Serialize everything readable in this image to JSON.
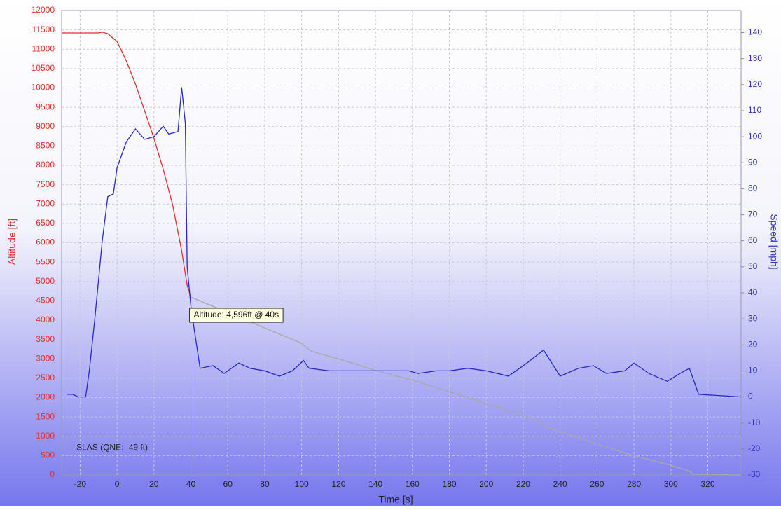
{
  "chart_data": {
    "type": "line",
    "xlabel": "Time [s]",
    "ylabel": "Altitude [ft]",
    "y2label": "Speed [mph]",
    "xlim": [
      -30,
      338
    ],
    "ylim": [
      0,
      12000
    ],
    "y2lim": [
      -30,
      148.5
    ],
    "xticks": [
      -20,
      0,
      20,
      40,
      60,
      80,
      100,
      120,
      140,
      160,
      180,
      200,
      220,
      240,
      260,
      280,
      300,
      320
    ],
    "yticks": [
      0,
      500,
      1000,
      1500,
      2000,
      2500,
      3000,
      3500,
      4000,
      4500,
      5000,
      5500,
      6000,
      6500,
      7000,
      7500,
      8000,
      8500,
      9000,
      9500,
      10000,
      10500,
      11000,
      11500,
      12000
    ],
    "y2ticks": [
      -30,
      -20,
      -10,
      0,
      10,
      20,
      30,
      40,
      50,
      60,
      70,
      80,
      90,
      100,
      110,
      120,
      130,
      140
    ],
    "grid": true,
    "ycolor": "#e03030",
    "y2color": "#3030c0",
    "series": [
      {
        "color": "#e03030",
        "axis": "y",
        "x": [
          -30,
          -10,
          -8,
          -5,
          0,
          5,
          10,
          15,
          20,
          25,
          30,
          35,
          38,
          40
        ],
        "values": [
          11420,
          11420,
          11440,
          11400,
          11200,
          10700,
          10100,
          9400,
          8700,
          7900,
          7000,
          5800,
          4900,
          4596
        ]
      },
      {
        "color": "#a8a8a8",
        "axis": "y",
        "x": [
          40,
          60,
          80,
          100,
          105,
          120,
          140,
          160,
          180,
          200,
          220,
          230,
          232,
          260,
          280,
          300,
          310,
          312,
          338
        ],
        "values": [
          4596,
          4200,
          3800,
          3400,
          3200,
          3000,
          2700,
          2450,
          2150,
          1850,
          1550,
          1350,
          1250,
          800,
          500,
          250,
          100,
          20,
          0
        ]
      },
      {
        "color": "#2828c8",
        "axis": "y2",
        "x": [
          -27,
          -24,
          -21,
          -17,
          -15,
          -12,
          -8,
          -5,
          -2,
          0,
          2,
          5,
          10,
          15,
          20,
          25,
          28,
          33,
          35,
          36,
          37,
          38,
          40,
          42,
          45,
          52,
          58,
          66,
          72,
          80,
          88,
          95,
          101,
          104,
          115,
          130,
          140,
          158,
          163,
          173,
          180,
          190,
          200,
          212,
          222,
          231,
          240,
          250,
          258,
          265,
          275,
          280,
          288,
          298,
          305,
          310,
          315,
          338
        ],
        "values": [
          1,
          1,
          0,
          0,
          10,
          30,
          60,
          77,
          78,
          88,
          92,
          98,
          103,
          99,
          100,
          104,
          101,
          102,
          119,
          112,
          105,
          50,
          35,
          25,
          11,
          12,
          9,
          13,
          11,
          10,
          8,
          10,
          14,
          11,
          10,
          10,
          10,
          10,
          9,
          10,
          10,
          11,
          10,
          8,
          13,
          18,
          8,
          11,
          12,
          9,
          10,
          13,
          9,
          6,
          9,
          11,
          1,
          0
        ]
      }
    ],
    "cursor": {
      "x": 40,
      "y": 4596,
      "label": "Altitude: 4,596ft @ 40s"
    },
    "annotations": [
      {
        "text": "SLAS (QNE: -49 ft)",
        "x": -22,
        "y": 700
      }
    ]
  }
}
